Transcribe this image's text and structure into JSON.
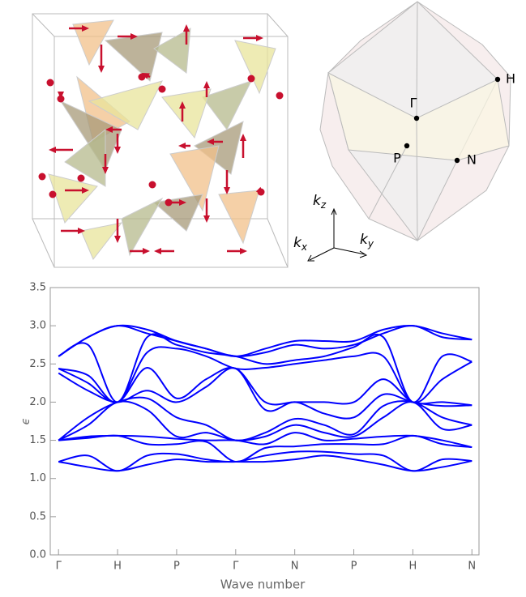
{
  "diagram": {
    "bz_points": [
      "H",
      "Γ",
      "P",
      "N"
    ],
    "axis_labels": [
      {
        "main": "k",
        "sub": "z"
      },
      {
        "main": "k",
        "sub": "x"
      },
      {
        "main": "k",
        "sub": "y"
      }
    ]
  },
  "chart_data": {
    "type": "line",
    "x": [
      0,
      0.5,
      1,
      1.5,
      2,
      2.5,
      3,
      3.5,
      4,
      4.5,
      5,
      5.5,
      6,
      6.5,
      7
    ],
    "xlabel": "Wave number",
    "ylabel": "ϵ",
    "xlim": [
      -0.14,
      7.12
    ],
    "ylim": [
      0,
      3.5
    ],
    "xticks": [
      {
        "value": 0,
        "label": "Γ"
      },
      {
        "value": 1,
        "label": "H"
      },
      {
        "value": 2,
        "label": "P"
      },
      {
        "value": 3,
        "label": "Γ"
      },
      {
        "value": 4,
        "label": "N"
      },
      {
        "value": 5,
        "label": "P"
      },
      {
        "value": 6,
        "label": "H"
      },
      {
        "value": 7,
        "label": "N"
      }
    ],
    "yticks": [
      {
        "value": 0,
        "label": "0.0"
      },
      0.5,
      {
        "value": 1,
        "label": "1.0"
      },
      1.5,
      {
        "value": 2,
        "label": "2.0"
      },
      2.5,
      {
        "value": 3,
        "label": "3.0"
      },
      3.5
    ],
    "series": [
      {
        "color": "#0000ff",
        "values": [
          1.22,
          1.15,
          1.1,
          1.18,
          1.25,
          1.22,
          1.22,
          1.22,
          1.25,
          1.3,
          1.25,
          1.18,
          1.1,
          1.15,
          1.23
        ]
      },
      {
        "color": "#0000ff",
        "values": [
          1.22,
          1.3,
          1.1,
          1.3,
          1.32,
          1.25,
          1.22,
          1.3,
          1.35,
          1.35,
          1.32,
          1.3,
          1.1,
          1.25,
          1.23
        ]
      },
      {
        "color": "#0000ff",
        "values": [
          1.5,
          1.53,
          1.56,
          1.45,
          1.45,
          1.48,
          1.22,
          1.4,
          1.42,
          1.45,
          1.45,
          1.45,
          1.56,
          1.45,
          1.41
        ]
      },
      {
        "color": "#0000ff",
        "values": [
          1.5,
          1.55,
          1.56,
          1.55,
          1.52,
          1.5,
          1.5,
          1.45,
          1.6,
          1.5,
          1.52,
          1.55,
          1.56,
          1.5,
          1.41
        ]
      },
      {
        "color": "#0000ff",
        "values": [
          1.5,
          1.7,
          2.0,
          1.9,
          1.55,
          1.6,
          1.5,
          1.55,
          1.7,
          1.6,
          1.55,
          1.8,
          2.0,
          1.65,
          1.7
        ]
      },
      {
        "color": "#0000ff",
        "values": [
          1.5,
          1.8,
          2.0,
          2.05,
          1.8,
          1.7,
          1.5,
          1.6,
          1.78,
          1.7,
          1.58,
          1.95,
          2.0,
          1.8,
          1.7
        ]
      },
      {
        "color": "#0000ff",
        "values": [
          2.38,
          2.15,
          2.0,
          2.15,
          2.0,
          2.2,
          2.44,
          1.9,
          2.0,
          1.85,
          1.8,
          2.1,
          2.0,
          1.95,
          1.96
        ]
      },
      {
        "color": "#0000ff",
        "values": [
          2.44,
          2.25,
          2.0,
          2.45,
          2.05,
          2.3,
          2.44,
          2.0,
          2.0,
          2.0,
          2.0,
          2.3,
          2.0,
          2.0,
          1.96
        ]
      },
      {
        "color": "#0000ff",
        "values": [
          2.44,
          2.35,
          2.0,
          2.65,
          2.7,
          2.6,
          2.44,
          2.45,
          2.5,
          2.55,
          2.6,
          2.6,
          2.0,
          2.3,
          2.53
        ]
      },
      {
        "color": "#0000ff",
        "values": [
          2.6,
          2.75,
          2.0,
          2.85,
          2.75,
          2.65,
          2.6,
          2.5,
          2.55,
          2.6,
          2.72,
          2.85,
          2.0,
          2.6,
          2.53
        ]
      },
      {
        "color": "#0000ff",
        "values": [
          2.6,
          2.85,
          3.0,
          2.9,
          2.8,
          2.7,
          2.6,
          2.65,
          2.75,
          2.7,
          2.75,
          2.9,
          3.0,
          2.85,
          2.82
        ]
      },
      {
        "color": "#0000ff",
        "values": [
          2.6,
          2.85,
          3.0,
          2.95,
          2.8,
          2.7,
          2.6,
          2.7,
          2.8,
          2.8,
          2.8,
          2.95,
          3.0,
          2.9,
          2.82
        ]
      }
    ]
  }
}
